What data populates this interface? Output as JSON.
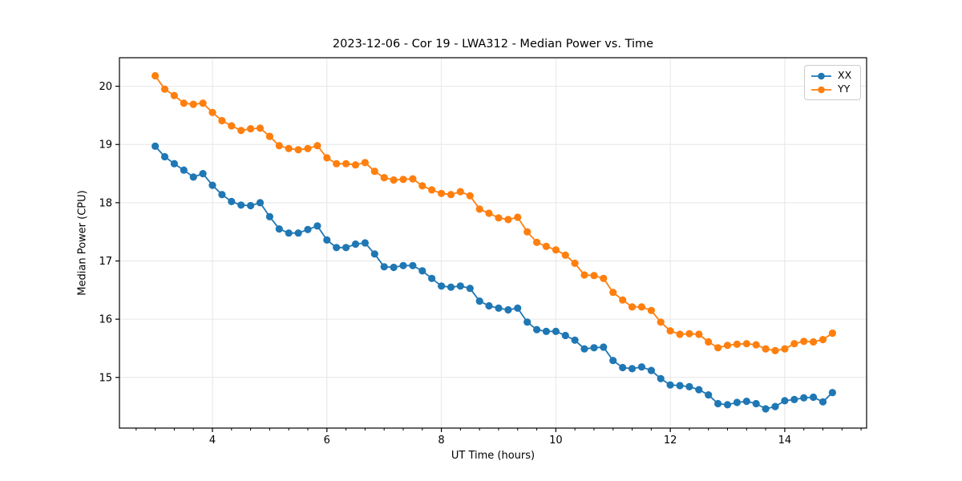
{
  "title": "2023-12-06 - Cor 19 - LWA312 - Median Power vs. Time",
  "legend": {
    "entries": [
      "XX",
      "YY"
    ]
  },
  "chart_data": {
    "type": "line",
    "title": "2023-12-06 - Cor 19 - LWA312 - Median Power vs. Time",
    "xlabel": "UT Time (hours)",
    "ylabel": "Median Power (CPU)",
    "xlim": [
      2.375,
      15.43
    ],
    "ylim": [
      14.13,
      20.49
    ],
    "x_ticks": [
      4,
      6,
      8,
      10,
      12,
      14
    ],
    "y_ticks": [
      15,
      16,
      17,
      18,
      19,
      20
    ],
    "x_minor_step": 0.3333333,
    "grid": true,
    "grid_color": "#e6e6e6",
    "legend_position": "upper right",
    "x": [
      3.0,
      3.167,
      3.333,
      3.5,
      3.667,
      3.833,
      4.0,
      4.167,
      4.333,
      4.5,
      4.667,
      4.833,
      5.0,
      5.167,
      5.333,
      5.5,
      5.667,
      5.833,
      6.0,
      6.167,
      6.333,
      6.5,
      6.667,
      6.833,
      7.0,
      7.167,
      7.333,
      7.5,
      7.667,
      7.833,
      8.0,
      8.167,
      8.333,
      8.5,
      8.667,
      8.833,
      9.0,
      9.167,
      9.333,
      9.5,
      9.667,
      9.833,
      10.0,
      10.167,
      10.333,
      10.5,
      10.667,
      10.833,
      11.0,
      11.167,
      11.333,
      11.5,
      11.667,
      11.833,
      12.0,
      12.167,
      12.333,
      12.5,
      12.667,
      12.833,
      13.0,
      13.167,
      13.333,
      13.5,
      13.667,
      13.833,
      14.0,
      14.167,
      14.333,
      14.5,
      14.667,
      14.833
    ],
    "series": [
      {
        "name": "XX",
        "color": "#1f77b4",
        "values": [
          18.97,
          18.79,
          18.67,
          18.56,
          18.44,
          18.5,
          18.3,
          18.14,
          18.02,
          17.96,
          17.95,
          18.0,
          17.76,
          17.55,
          17.48,
          17.48,
          17.54,
          17.6,
          17.36,
          17.23,
          17.23,
          17.29,
          17.31,
          17.12,
          16.9,
          16.89,
          16.92,
          16.92,
          16.83,
          16.7,
          16.57,
          16.55,
          16.57,
          16.53,
          16.31,
          16.23,
          16.19,
          16.16,
          16.19,
          15.95,
          15.82,
          15.79,
          15.79,
          15.72,
          15.64,
          15.49,
          15.51,
          15.52,
          15.29,
          15.17,
          15.15,
          15.18,
          15.12,
          14.98,
          14.87,
          14.86,
          14.84,
          14.79,
          14.7,
          14.55,
          14.53,
          14.57,
          14.59,
          14.55,
          14.46,
          14.5,
          14.6,
          14.62,
          14.65,
          14.66,
          14.58,
          14.74
        ]
      },
      {
        "name": "YY",
        "color": "#ff7f0e",
        "values": [
          20.18,
          19.95,
          19.84,
          19.71,
          19.69,
          19.71,
          19.55,
          19.41,
          19.32,
          19.24,
          19.27,
          19.28,
          19.14,
          18.98,
          18.93,
          18.91,
          18.93,
          18.98,
          18.77,
          18.67,
          18.67,
          18.65,
          18.69,
          18.54,
          18.43,
          18.39,
          18.4,
          18.41,
          18.29,
          18.22,
          18.16,
          18.14,
          18.19,
          18.12,
          17.89,
          17.82,
          17.74,
          17.71,
          17.75,
          17.5,
          17.32,
          17.25,
          17.19,
          17.1,
          16.96,
          16.76,
          16.75,
          16.7,
          16.46,
          16.33,
          16.21,
          16.21,
          16.15,
          15.95,
          15.8,
          15.74,
          15.75,
          15.74,
          15.61,
          15.51,
          15.55,
          15.57,
          15.58,
          15.56,
          15.49,
          15.46,
          15.49,
          15.58,
          15.62,
          15.61,
          15.65,
          15.76
        ]
      }
    ]
  }
}
